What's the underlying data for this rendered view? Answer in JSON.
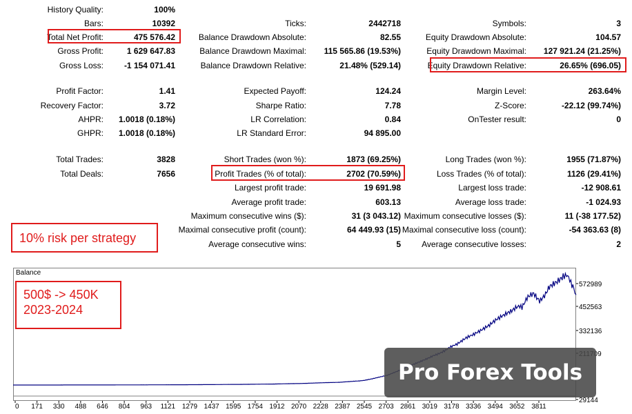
{
  "stats": {
    "history_quality": {
      "label": "History Quality:",
      "value": "100%"
    },
    "bars": {
      "label": "Bars:",
      "value": "10392"
    },
    "total_net_profit": {
      "label": "Total Net Profit:",
      "value": "475 576.42"
    },
    "gross_profit": {
      "label": "Gross Profit:",
      "value": "1 629 647.83"
    },
    "gross_loss": {
      "label": "Gross Loss:",
      "value": "-1 154 071.41"
    },
    "ticks": {
      "label": "Ticks:",
      "value": "2442718"
    },
    "balance_dd_absolute": {
      "label": "Balance Drawdown Absolute:",
      "value": "82.55"
    },
    "balance_dd_maximal": {
      "label": "Balance Drawdown Maximal:",
      "value": "115 565.86 (19.53%)"
    },
    "balance_dd_relative": {
      "label": "Balance Drawdown Relative:",
      "value": "21.48% (529.14)"
    },
    "symbols": {
      "label": "Symbols:",
      "value": "3"
    },
    "equity_dd_absolute": {
      "label": "Equity Drawdown Absolute:",
      "value": "104.57"
    },
    "equity_dd_maximal": {
      "label": "Equity Drawdown Maximal:",
      "value": "127 921.24 (21.25%)"
    },
    "equity_dd_relative": {
      "label": "Equity Drawdown Relative:",
      "value": "26.65% (696.05)"
    },
    "profit_factor": {
      "label": "Profit Factor:",
      "value": "1.41"
    },
    "recovery_factor": {
      "label": "Recovery Factor:",
      "value": "3.72"
    },
    "ahpr": {
      "label": "AHPR:",
      "value": "1.0018 (0.18%)"
    },
    "ghpr": {
      "label": "GHPR:",
      "value": "1.0018 (0.18%)"
    },
    "expected_payoff": {
      "label": "Expected Payoff:",
      "value": "124.24"
    },
    "sharpe_ratio": {
      "label": "Sharpe Ratio:",
      "value": "7.78"
    },
    "lr_correlation": {
      "label": "LR Correlation:",
      "value": "0.84"
    },
    "lr_std_error": {
      "label": "LR Standard Error:",
      "value": "94 895.00"
    },
    "margin_level": {
      "label": "Margin Level:",
      "value": "263.64%"
    },
    "z_score": {
      "label": "Z-Score:",
      "value": "-22.12 (99.74%)"
    },
    "ontester_result": {
      "label": "OnTester result:",
      "value": "0"
    },
    "total_trades": {
      "label": "Total Trades:",
      "value": "3828"
    },
    "total_deals": {
      "label": "Total Deals:",
      "value": "7656"
    },
    "short_trades": {
      "label": "Short Trades (won %):",
      "value": "1873 (69.25%)"
    },
    "profit_trades": {
      "label": "Profit Trades (% of total):",
      "value": "2702 (70.59%)"
    },
    "largest_profit_trade": {
      "label": "Largest profit trade:",
      "value": "19 691.98"
    },
    "average_profit_trade": {
      "label": "Average profit trade:",
      "value": "603.13"
    },
    "max_consec_wins": {
      "label": "Maximum consecutive wins ($):",
      "value": "31 (3 043.12)"
    },
    "maximal_consec_profit": {
      "label": "Maximal consecutive profit (count):",
      "value": "64 449.93 (15)"
    },
    "avg_consec_wins": {
      "label": "Average consecutive wins:",
      "value": "5"
    },
    "long_trades": {
      "label": "Long Trades (won %):",
      "value": "1955 (71.87%)"
    },
    "loss_trades": {
      "label": "Loss Trades (% of total):",
      "value": "1126 (29.41%)"
    },
    "largest_loss_trade": {
      "label": "Largest loss trade:",
      "value": "-12 908.61"
    },
    "average_loss_trade": {
      "label": "Average loss trade:",
      "value": "-1 024.93"
    },
    "max_consec_losses": {
      "label": "Maximum consecutive losses ($):",
      "value": "11 (-38 177.52)"
    },
    "maximal_consec_loss": {
      "label": "Maximal consecutive loss (count):",
      "value": "-54 363.63 (8)"
    },
    "avg_consec_losses": {
      "label": "Average consecutive losses:",
      "value": "2"
    }
  },
  "notes": {
    "risk": "10% risk per strategy",
    "growth_line1": "500$ -> 450K",
    "growth_line2": "2023-2024"
  },
  "watermark": "Pro Forex Tools",
  "highlight_color": "#e01b1b",
  "chart_data": {
    "type": "line",
    "title": "Balance",
    "series": [],
    "line_color": "#000080",
    "x_ticks": [
      "0",
      "171",
      "330",
      "488",
      "646",
      "804",
      "963",
      "1121",
      "1279",
      "1437",
      "1595",
      "1754",
      "1912",
      "2070",
      "2228",
      "2387",
      "2545",
      "2703",
      "2861",
      "3019",
      "3178",
      "3336",
      "3494",
      "3652",
      "3811"
    ],
    "y_ticks": [
      "572989",
      "452563",
      "332136",
      "211709",
      "29144"
    ],
    "xlim": [
      0,
      3828
    ],
    "points": [
      [
        0,
        500
      ],
      [
        200,
        600
      ],
      [
        400,
        800
      ],
      [
        600,
        1000
      ],
      [
        800,
        1300
      ],
      [
        1000,
        1700
      ],
      [
        1200,
        2300
      ],
      [
        1400,
        3200
      ],
      [
        1600,
        4500
      ],
      [
        1800,
        6500
      ],
      [
        1950,
        9000
      ],
      [
        2070,
        12000
      ],
      [
        2228,
        16000
      ],
      [
        2300,
        20000
      ],
      [
        2387,
        26000
      ],
      [
        2450,
        36000
      ],
      [
        2545,
        55000
      ],
      [
        2620,
        80000
      ],
      [
        2703,
        110000
      ],
      [
        2780,
        135000
      ],
      [
        2861,
        165000
      ],
      [
        2940,
        190000
      ],
      [
        3019,
        225000
      ],
      [
        3080,
        255000
      ],
      [
        3130,
        280000
      ],
      [
        3178,
        300000
      ],
      [
        3240,
        330000
      ],
      [
        3300,
        360000
      ],
      [
        3336,
        380000
      ],
      [
        3390,
        400000
      ],
      [
        3430,
        430000
      ],
      [
        3460,
        420000
      ],
      [
        3494,
        470000
      ],
      [
        3540,
        505000
      ],
      [
        3580,
        470000
      ],
      [
        3620,
        500000
      ],
      [
        3652,
        535000
      ],
      [
        3700,
        560000
      ],
      [
        3740,
        600000
      ],
      [
        3770,
        590000
      ],
      [
        3800,
        555000
      ],
      [
        3811,
        520000
      ],
      [
        3828,
        495000
      ]
    ],
    "ylim": [
      -60000,
      640000
    ]
  }
}
